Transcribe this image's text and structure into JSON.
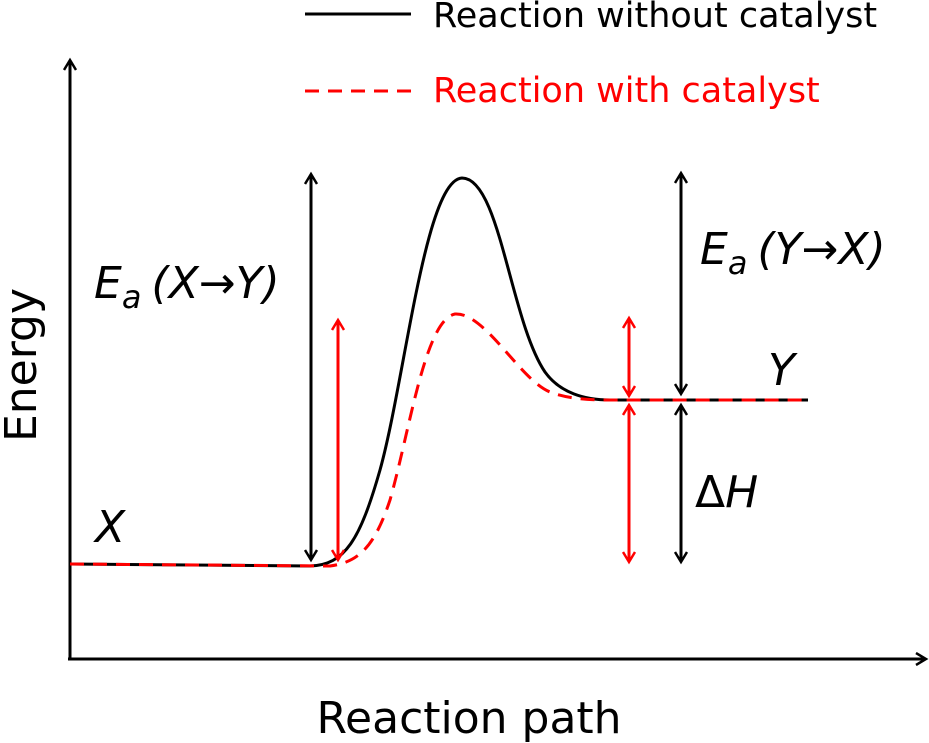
{
  "legend": {
    "uncatalyzed": {
      "label": "Reaction without catalyst",
      "color": "#000000"
    },
    "catalyzed": {
      "label": "Reaction with catalyst",
      "color": "#ff0000"
    }
  },
  "axes": {
    "x_label": "Reaction path",
    "y_label": "Energy"
  },
  "states": {
    "reactant": "X",
    "product": "Y"
  },
  "annotations": {
    "ea_forward": {
      "E": "E",
      "sub": "a",
      "rest": "(X→Y)"
    },
    "ea_reverse": {
      "E": "E",
      "sub": "a",
      "rest": "(Y→X)"
    },
    "enthalpy": {
      "delta": "Δ",
      "symbol": "H"
    }
  },
  "colors": {
    "axis": "#000000",
    "uncatalyzed": "#000000",
    "catalyzed": "#ff0000"
  }
}
